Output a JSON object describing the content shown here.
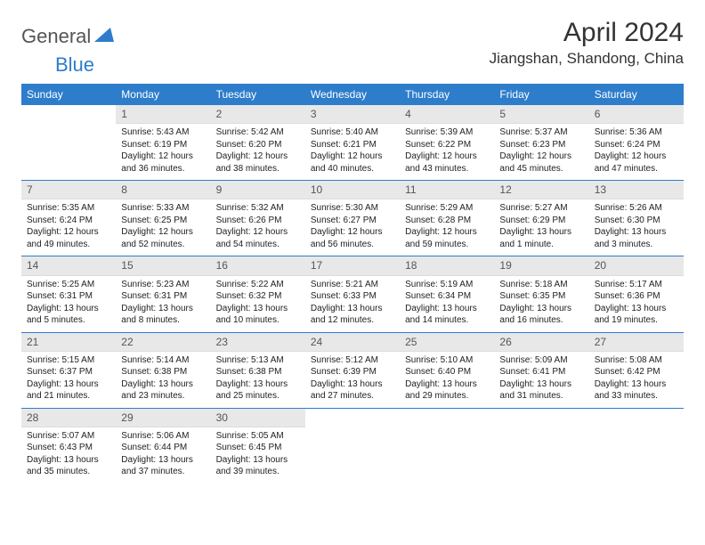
{
  "brand": {
    "part1": "General",
    "part2": "Blue"
  },
  "title": "April 2024",
  "location": "Jiangshan, Shandong, China",
  "colors": {
    "header_bg": "#2d7dcb",
    "header_text": "#ffffff",
    "daynum_bg": "#e8e8e8",
    "border": "#2d7dcb",
    "text": "#222222",
    "title_text": "#333333",
    "logo_gray": "#555555",
    "logo_blue": "#2d7dcb",
    "page_bg": "#ffffff"
  },
  "typography": {
    "title_fontsize": 30,
    "location_fontsize": 17,
    "weekday_fontsize": 12,
    "daynum_fontsize": 12,
    "body_fontsize": 10
  },
  "weekdays": [
    "Sunday",
    "Monday",
    "Tuesday",
    "Wednesday",
    "Thursday",
    "Friday",
    "Saturday"
  ],
  "weeks": [
    [
      {
        "empty": true
      },
      {
        "num": "1",
        "sunrise": "5:43 AM",
        "sunset": "6:19 PM",
        "daylight": "12 hours and 36 minutes."
      },
      {
        "num": "2",
        "sunrise": "5:42 AM",
        "sunset": "6:20 PM",
        "daylight": "12 hours and 38 minutes."
      },
      {
        "num": "3",
        "sunrise": "5:40 AM",
        "sunset": "6:21 PM",
        "daylight": "12 hours and 40 minutes."
      },
      {
        "num": "4",
        "sunrise": "5:39 AM",
        "sunset": "6:22 PM",
        "daylight": "12 hours and 43 minutes."
      },
      {
        "num": "5",
        "sunrise": "5:37 AM",
        "sunset": "6:23 PM",
        "daylight": "12 hours and 45 minutes."
      },
      {
        "num": "6",
        "sunrise": "5:36 AM",
        "sunset": "6:24 PM",
        "daylight": "12 hours and 47 minutes."
      }
    ],
    [
      {
        "num": "7",
        "sunrise": "5:35 AM",
        "sunset": "6:24 PM",
        "daylight": "12 hours and 49 minutes."
      },
      {
        "num": "8",
        "sunrise": "5:33 AM",
        "sunset": "6:25 PM",
        "daylight": "12 hours and 52 minutes."
      },
      {
        "num": "9",
        "sunrise": "5:32 AM",
        "sunset": "6:26 PM",
        "daylight": "12 hours and 54 minutes."
      },
      {
        "num": "10",
        "sunrise": "5:30 AM",
        "sunset": "6:27 PM",
        "daylight": "12 hours and 56 minutes."
      },
      {
        "num": "11",
        "sunrise": "5:29 AM",
        "sunset": "6:28 PM",
        "daylight": "12 hours and 59 minutes."
      },
      {
        "num": "12",
        "sunrise": "5:27 AM",
        "sunset": "6:29 PM",
        "daylight": "13 hours and 1 minute."
      },
      {
        "num": "13",
        "sunrise": "5:26 AM",
        "sunset": "6:30 PM",
        "daylight": "13 hours and 3 minutes."
      }
    ],
    [
      {
        "num": "14",
        "sunrise": "5:25 AM",
        "sunset": "6:31 PM",
        "daylight": "13 hours and 5 minutes."
      },
      {
        "num": "15",
        "sunrise": "5:23 AM",
        "sunset": "6:31 PM",
        "daylight": "13 hours and 8 minutes."
      },
      {
        "num": "16",
        "sunrise": "5:22 AM",
        "sunset": "6:32 PM",
        "daylight": "13 hours and 10 minutes."
      },
      {
        "num": "17",
        "sunrise": "5:21 AM",
        "sunset": "6:33 PM",
        "daylight": "13 hours and 12 minutes."
      },
      {
        "num": "18",
        "sunrise": "5:19 AM",
        "sunset": "6:34 PM",
        "daylight": "13 hours and 14 minutes."
      },
      {
        "num": "19",
        "sunrise": "5:18 AM",
        "sunset": "6:35 PM",
        "daylight": "13 hours and 16 minutes."
      },
      {
        "num": "20",
        "sunrise": "5:17 AM",
        "sunset": "6:36 PM",
        "daylight": "13 hours and 19 minutes."
      }
    ],
    [
      {
        "num": "21",
        "sunrise": "5:15 AM",
        "sunset": "6:37 PM",
        "daylight": "13 hours and 21 minutes."
      },
      {
        "num": "22",
        "sunrise": "5:14 AM",
        "sunset": "6:38 PM",
        "daylight": "13 hours and 23 minutes."
      },
      {
        "num": "23",
        "sunrise": "5:13 AM",
        "sunset": "6:38 PM",
        "daylight": "13 hours and 25 minutes."
      },
      {
        "num": "24",
        "sunrise": "5:12 AM",
        "sunset": "6:39 PM",
        "daylight": "13 hours and 27 minutes."
      },
      {
        "num": "25",
        "sunrise": "5:10 AM",
        "sunset": "6:40 PM",
        "daylight": "13 hours and 29 minutes."
      },
      {
        "num": "26",
        "sunrise": "5:09 AM",
        "sunset": "6:41 PM",
        "daylight": "13 hours and 31 minutes."
      },
      {
        "num": "27",
        "sunrise": "5:08 AM",
        "sunset": "6:42 PM",
        "daylight": "13 hours and 33 minutes."
      }
    ],
    [
      {
        "num": "28",
        "sunrise": "5:07 AM",
        "sunset": "6:43 PM",
        "daylight": "13 hours and 35 minutes."
      },
      {
        "num": "29",
        "sunrise": "5:06 AM",
        "sunset": "6:44 PM",
        "daylight": "13 hours and 37 minutes."
      },
      {
        "num": "30",
        "sunrise": "5:05 AM",
        "sunset": "6:45 PM",
        "daylight": "13 hours and 39 minutes."
      },
      {
        "empty": true
      },
      {
        "empty": true
      },
      {
        "empty": true
      },
      {
        "empty": true
      }
    ]
  ],
  "labels": {
    "sunrise": "Sunrise:",
    "sunset": "Sunset:",
    "daylight": "Daylight:"
  }
}
